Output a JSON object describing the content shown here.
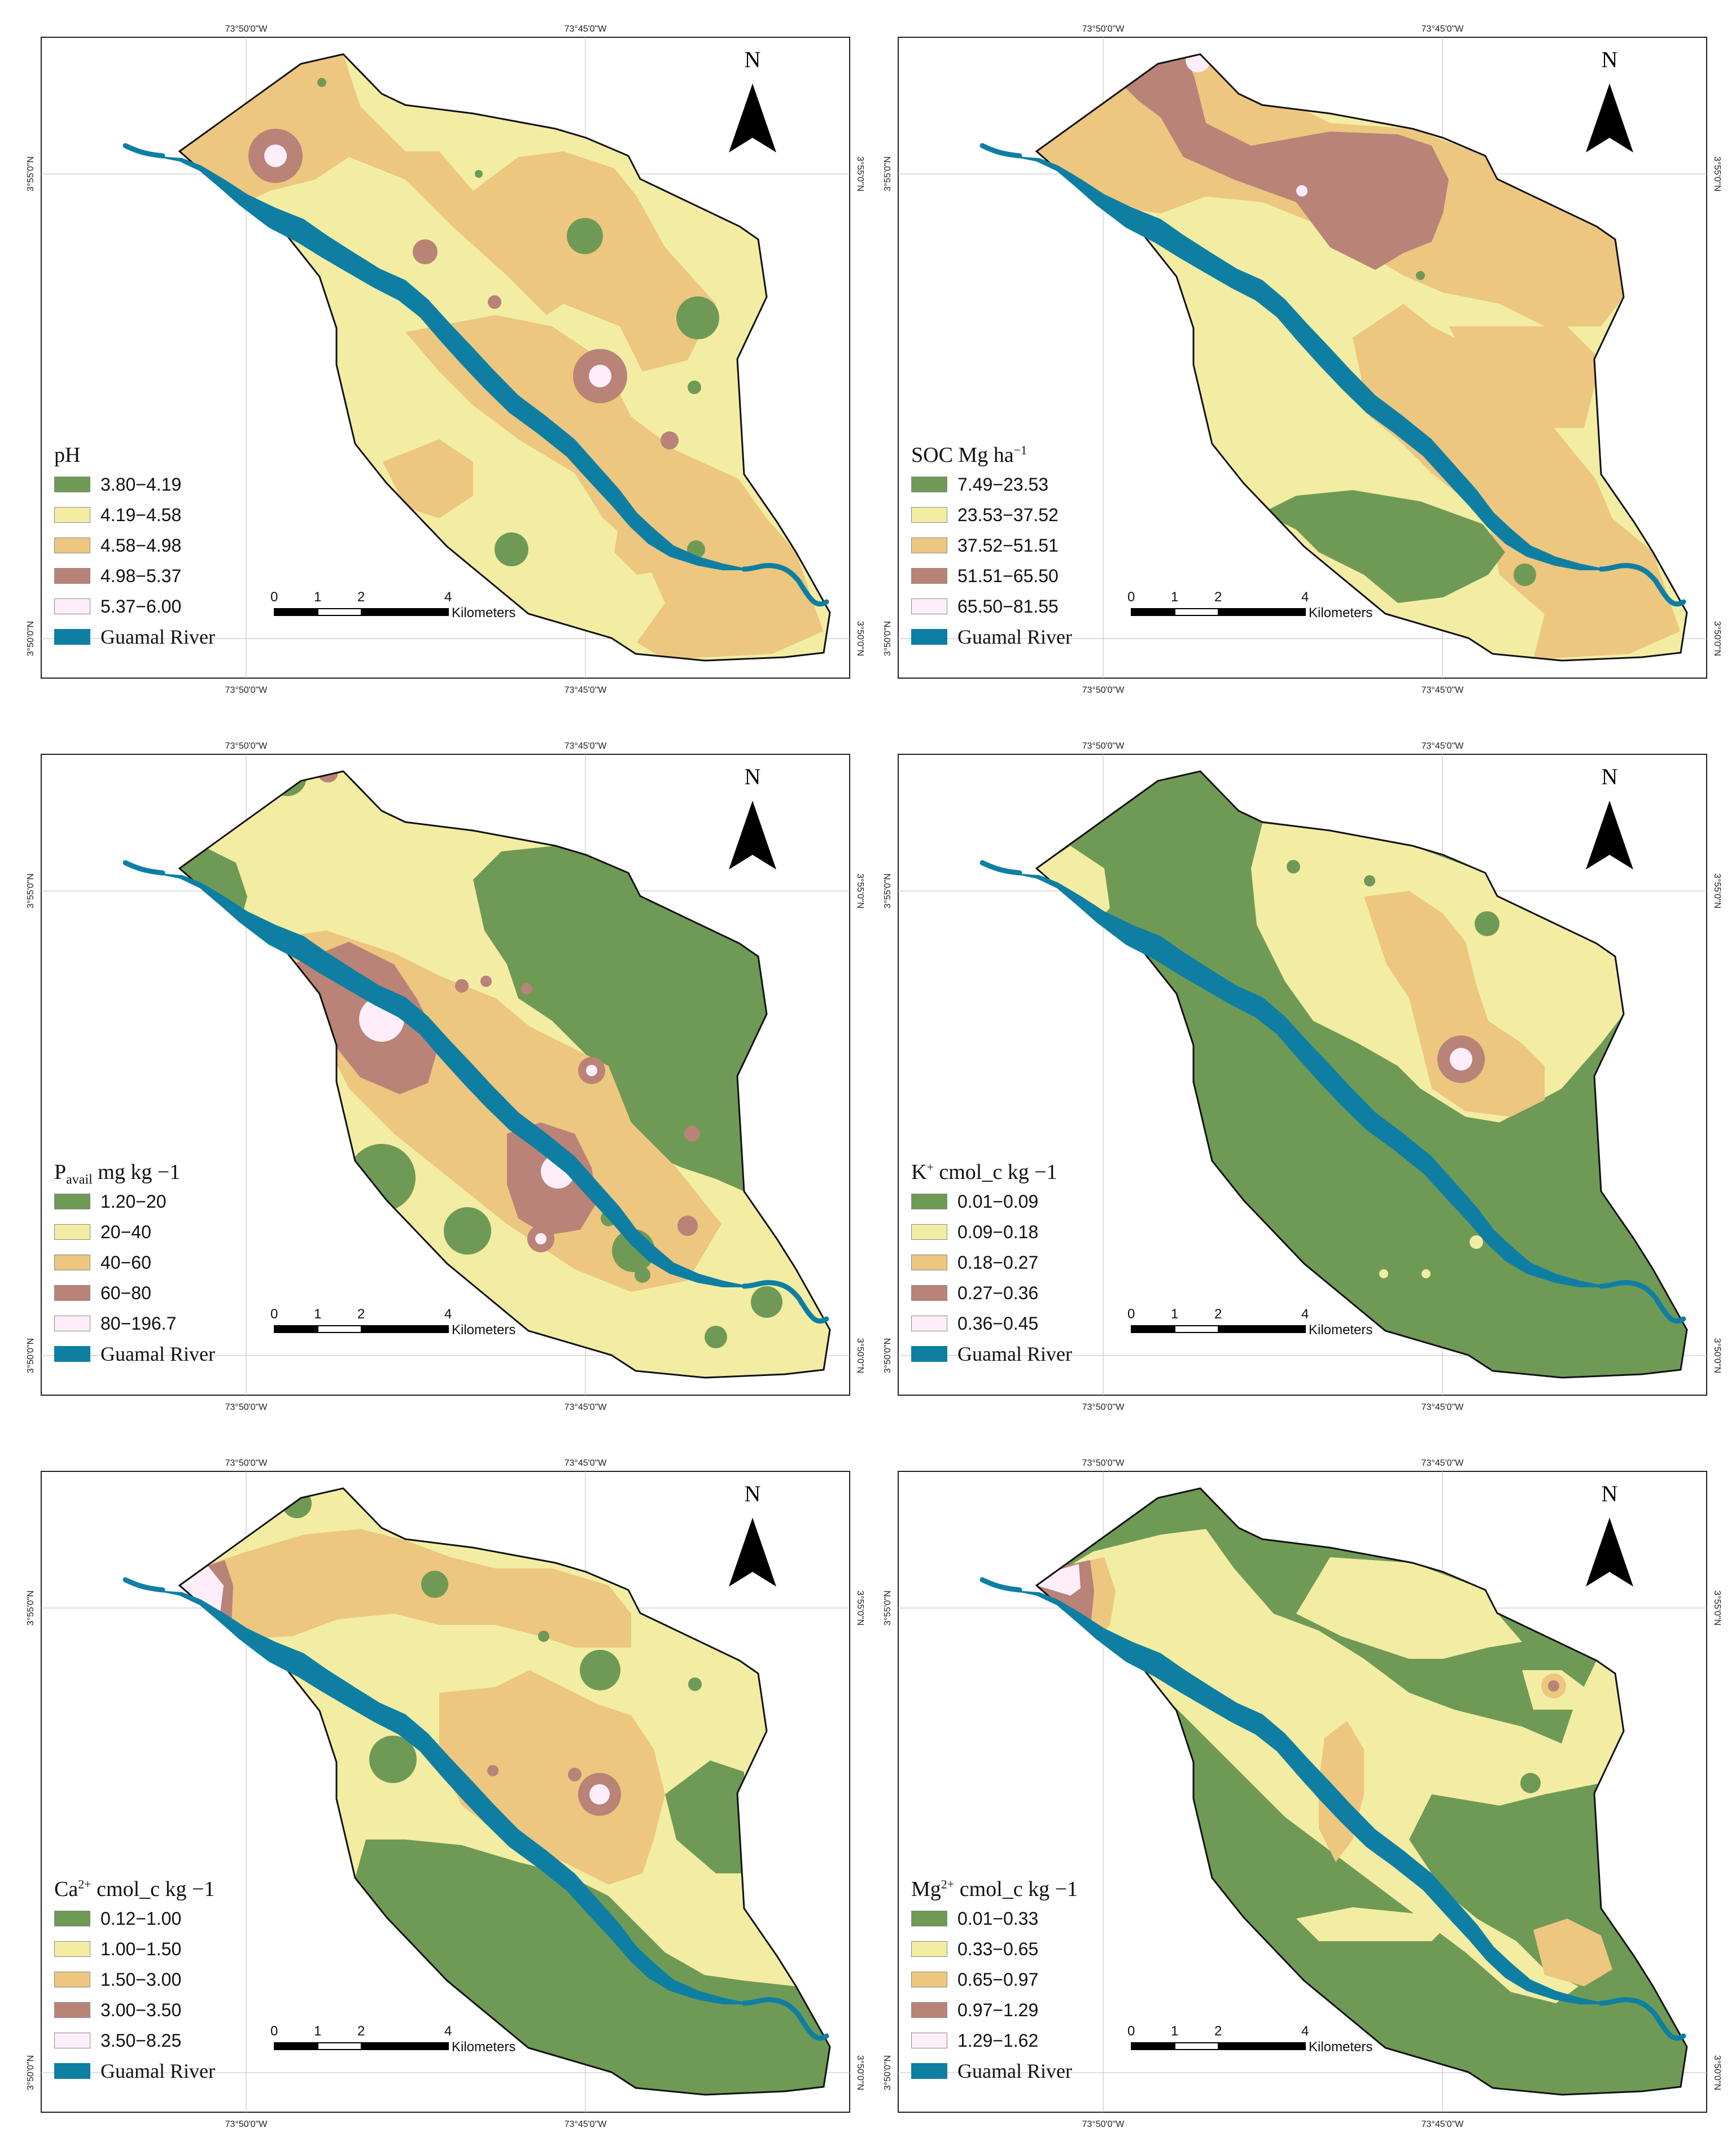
{
  "coords": {
    "lon_left": "73°50'0\"W",
    "lon_right": "73°45'0\"W",
    "lat_top": "3°55'0\"N",
    "lat_bottom": "3°50'0\"N"
  },
  "north_label": "N",
  "scale": {
    "ticks": [
      "0",
      "1",
      "2",
      "4"
    ],
    "unit": "Kilometers"
  },
  "river": {
    "label": "Guamal River",
    "color": "#0e7fa3"
  },
  "panels": [
    {
      "id": "ph",
      "title": "pH",
      "title_sub": "",
      "title_sup": "",
      "title_tail": "",
      "classes": [
        {
          "label": "3.80−4.19",
          "color": "#6f9a55"
        },
        {
          "label": "4.19−4.58",
          "color": "#f2eda3"
        },
        {
          "label": "4.58−4.98",
          "color": "#edc680"
        },
        {
          "label": "4.98−5.37",
          "color": "#b98377"
        },
        {
          "label": "5.37−6.00",
          "color": "#fdeefa"
        }
      ]
    },
    {
      "id": "soc",
      "title": "SOC Mg ha",
      "title_sub": "",
      "title_sup": "−1",
      "title_tail": "",
      "classes": [
        {
          "label": "7.49−23.53",
          "color": "#6f9a55"
        },
        {
          "label": "23.53−37.52",
          "color": "#f2eda3"
        },
        {
          "label": "37.52−51.51",
          "color": "#edc680"
        },
        {
          "label": "51.51−65.50",
          "color": "#b98377"
        },
        {
          "label": "65.50−81.55",
          "color": "#fdeefa"
        }
      ]
    },
    {
      "id": "pavail",
      "title": "P",
      "title_sub": "avail",
      "title_sup": "",
      "title_tail": " mg kg −1",
      "classes": [
        {
          "label": "1.20−20",
          "color": "#6f9a55"
        },
        {
          "label": "20−40",
          "color": "#f2eda3"
        },
        {
          "label": "40−60",
          "color": "#edc680"
        },
        {
          "label": "60−80",
          "color": "#b98377"
        },
        {
          "label": "80−196.7",
          "color": "#fdeefa"
        }
      ]
    },
    {
      "id": "k",
      "title": "K",
      "title_sub": "",
      "title_sup": "+",
      "title_tail": " cmol_c kg −1",
      "classes": [
        {
          "label": "0.01−0.09",
          "color": "#6f9a55"
        },
        {
          "label": "0.09−0.18",
          "color": "#f2eda3"
        },
        {
          "label": "0.18−0.27",
          "color": "#edc680"
        },
        {
          "label": "0.27−0.36",
          "color": "#b98377"
        },
        {
          "label": "0.36−0.45",
          "color": "#fdeefa"
        }
      ]
    },
    {
      "id": "ca",
      "title": "Ca",
      "title_sub": "",
      "title_sup": "2+",
      "title_tail": " cmol_c kg −1",
      "classes": [
        {
          "label": "0.12−1.00",
          "color": "#6f9a55"
        },
        {
          "label": "1.00−1.50",
          "color": "#f2eda3"
        },
        {
          "label": "1.50−3.00",
          "color": "#edc680"
        },
        {
          "label": "3.00−3.50",
          "color": "#b98377"
        },
        {
          "label": "3.50−8.25",
          "color": "#fdeefa"
        }
      ]
    },
    {
      "id": "mg",
      "title": "Mg",
      "title_sub": "",
      "title_sup": "2+",
      "title_tail": " cmol_c kg −1",
      "classes": [
        {
          "label": "0.01−0.33",
          "color": "#6f9a55"
        },
        {
          "label": "0.33−0.65",
          "color": "#f2eda3"
        },
        {
          "label": "0.65−0.97",
          "color": "#edc680"
        },
        {
          "label": "0.97−1.29",
          "color": "#b98377"
        },
        {
          "label": "1.29−1.62",
          "color": "#fdeefa"
        }
      ]
    }
  ]
}
